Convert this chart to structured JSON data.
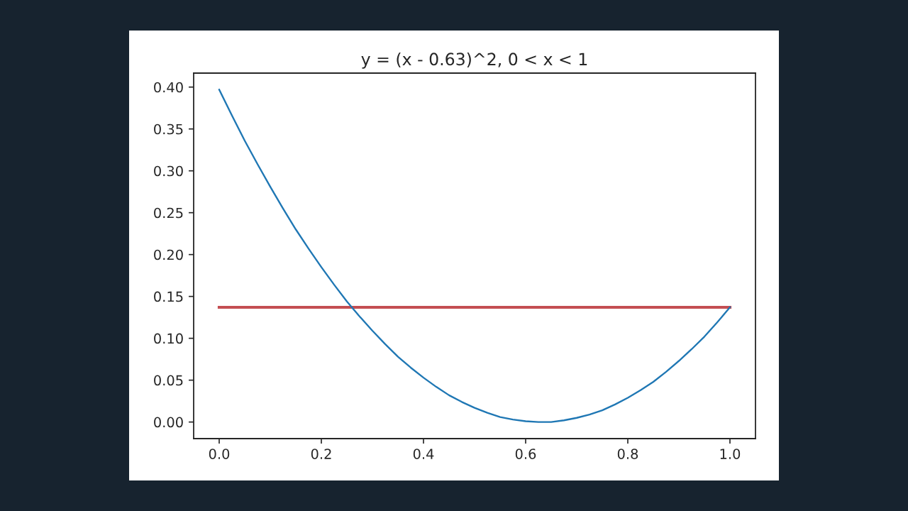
{
  "chart_data": {
    "type": "line",
    "title": "y = (x - 0.63)^2, 0 < x < 1",
    "xlim": [
      -0.05,
      1.05
    ],
    "ylim": [
      -0.0198,
      0.4167
    ],
    "xticks": [
      {
        "value": 0,
        "label": "0.0"
      },
      {
        "value": 0.2,
        "label": "0.2"
      },
      {
        "value": 0.4,
        "label": "0.4"
      },
      {
        "value": 0.6,
        "label": "0.6"
      },
      {
        "value": 0.8,
        "label": "0.8"
      },
      {
        "value": 1,
        "label": "1.0"
      }
    ],
    "yticks": [
      {
        "value": 0,
        "label": "0.00"
      },
      {
        "value": 0.05,
        "label": "0.05"
      },
      {
        "value": 0.1,
        "label": "0.10"
      },
      {
        "value": 0.15,
        "label": "0.15"
      },
      {
        "value": 0.2,
        "label": "0.20"
      },
      {
        "value": 0.25,
        "label": "0.25"
      },
      {
        "value": 0.3,
        "label": "0.30"
      },
      {
        "value": 0.35,
        "label": "0.35"
      },
      {
        "value": 0.4,
        "label": "0.40"
      }
    ],
    "series": [
      {
        "color": "#1f77b4",
        "x": [
          0,
          0.025,
          0.05,
          0.075,
          0.1,
          0.125,
          0.15,
          0.175,
          0.2,
          0.225,
          0.25,
          0.275,
          0.3,
          0.325,
          0.35,
          0.375,
          0.4,
          0.425,
          0.45,
          0.475,
          0.5,
          0.525,
          0.55,
          0.575,
          0.6,
          0.625,
          0.65,
          0.675,
          0.7,
          0.725,
          0.75,
          0.775,
          0.8,
          0.825,
          0.85,
          0.875,
          0.9,
          0.925,
          0.95,
          0.975,
          1
        ],
        "values": [
          0.397,
          0.366,
          0.336,
          0.308,
          0.281,
          0.255,
          0.23,
          0.207,
          0.185,
          0.164,
          0.144,
          0.126,
          0.109,
          0.093,
          0.078,
          0.065,
          0.053,
          0.042,
          0.032,
          0.024,
          0.017,
          0.011,
          0.006,
          0.003,
          0.001,
          0.0,
          0.0,
          0.002,
          0.005,
          0.009,
          0.014,
          0.021,
          0.029,
          0.038,
          0.048,
          0.06,
          0.073,
          0.087,
          0.102,
          0.119,
          0.137
        ]
      },
      {
        "color": "#c44e52",
        "x": [
          0,
          1
        ],
        "values": [
          0.137,
          0.137
        ]
      }
    ]
  }
}
